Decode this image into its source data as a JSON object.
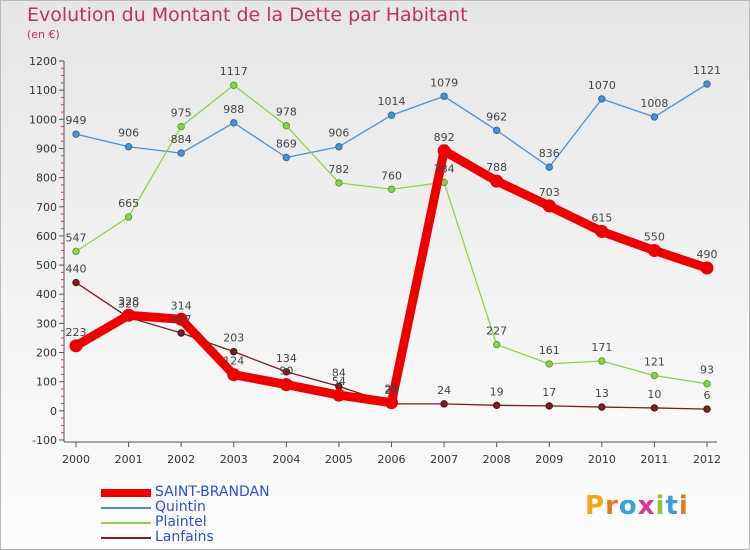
{
  "header": {
    "title": "Evolution du Montant de la Dette par Habitant",
    "subtitle": "(en €)"
  },
  "logo": {
    "text": "Proxiti",
    "letter_colors": [
      "#f2a51f",
      "#e8781f",
      "#39a0d8",
      "#d23a8c",
      "#8ec63f",
      "#39a0d8",
      "#e8781f"
    ]
  },
  "chart_data": {
    "type": "line",
    "title": "Evolution du Montant de la Dette par Habitant",
    "subtitle": "(en €)",
    "xlabel": "",
    "ylabel": "",
    "x": [
      "2000",
      "2001",
      "2002",
      "2003",
      "2004",
      "2005",
      "2006",
      "2007",
      "2008",
      "2009",
      "2010",
      "2011",
      "2012"
    ],
    "ylim": [
      -100,
      1200
    ],
    "yticks": [
      "-100",
      "0",
      "100",
      "200",
      "300",
      "400",
      "500",
      "600",
      "700",
      "800",
      "900",
      "1000",
      "1100",
      "1200"
    ],
    "grid": false,
    "legend_position": "bottom-left",
    "series": [
      {
        "name": "SAINT-BRANDAN",
        "color": "#ee0000",
        "values": [
          223,
          328,
          314,
          124,
          90,
          54,
          28,
          892,
          788,
          703,
          615,
          550,
          490
        ],
        "labels": [
          "223",
          "328",
          "314",
          "124",
          "90",
          "54",
          "28",
          "892",
          "788",
          "703",
          "615",
          "550",
          "490"
        ]
      },
      {
        "name": "Quintin",
        "color": "#4f8fcf",
        "values": [
          949,
          906,
          884,
          988,
          869,
          906,
          1014,
          1079,
          962,
          836,
          1070,
          1008,
          1121
        ],
        "labels": [
          "949",
          "906",
          "884",
          "988",
          "869",
          "906",
          "1014",
          "1079",
          "962",
          "836",
          "1070",
          "1008",
          "1121"
        ]
      },
      {
        "name": "Plaintel",
        "color": "#8ed14f",
        "values": [
          547,
          665,
          975,
          1117,
          978,
          782,
          760,
          784,
          227,
          161,
          171,
          121,
          93
        ],
        "labels": [
          "547",
          "665",
          "975",
          "1117",
          "978",
          "782",
          "760",
          "784",
          "227",
          "161",
          "171",
          "121",
          "93"
        ]
      },
      {
        "name": "Lanfains",
        "color": "#7a2020",
        "values": [
          440,
          320,
          267,
          203,
          134,
          84,
          24,
          24,
          19,
          17,
          13,
          10,
          6
        ],
        "labels": [
          "440",
          "320",
          "267",
          "203",
          "134",
          "84",
          "24",
          "24",
          "19",
          "17",
          "13",
          "10",
          "6"
        ]
      }
    ]
  }
}
